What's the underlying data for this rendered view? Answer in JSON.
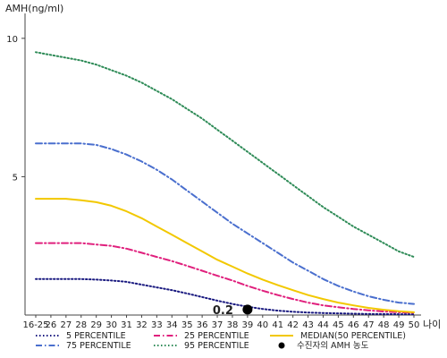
{
  "chart_data": {
    "type": "line",
    "ylabel": "AMH(ng/ml)",
    "xlabel": "나이",
    "ylim": [
      0,
      10.9
    ],
    "yticks": [
      10,
      5
    ],
    "categories": [
      "16-25",
      "26",
      "27",
      "28",
      "29",
      "30",
      "31",
      "32",
      "33",
      "34",
      "35",
      "36",
      "37",
      "38",
      "39",
      "40",
      "41",
      "42",
      "43",
      "44",
      "45",
      "46",
      "47",
      "48",
      "49",
      "50"
    ],
    "series": [
      {
        "name": "5 PERCENTILE",
        "color": "#1a1a80",
        "dash": "dot",
        "values": [
          1.3,
          1.3,
          1.3,
          1.3,
          1.28,
          1.25,
          1.2,
          1.1,
          1.0,
          0.9,
          0.78,
          0.65,
          0.52,
          0.4,
          0.3,
          0.22,
          0.16,
          0.12,
          0.09,
          0.07,
          0.06,
          0.05,
          0.04,
          0.035,
          0.03,
          0.03
        ]
      },
      {
        "name": "75 PERCENTILE",
        "color": "#4a6fce",
        "dash": "dashdot",
        "values": [
          6.2,
          6.2,
          6.2,
          6.2,
          6.15,
          6.0,
          5.8,
          5.55,
          5.25,
          4.9,
          4.5,
          4.1,
          3.7,
          3.3,
          2.95,
          2.6,
          2.25,
          1.9,
          1.6,
          1.3,
          1.05,
          0.85,
          0.68,
          0.55,
          0.45,
          0.4
        ]
      },
      {
        "name": "25 PERCENTILE",
        "color": "#e0207d",
        "dash": "dashdot",
        "values": [
          2.6,
          2.6,
          2.6,
          2.6,
          2.55,
          2.5,
          2.4,
          2.25,
          2.1,
          1.95,
          1.78,
          1.6,
          1.42,
          1.25,
          1.05,
          0.88,
          0.72,
          0.58,
          0.45,
          0.35,
          0.28,
          0.22,
          0.17,
          0.13,
          0.1,
          0.08
        ]
      },
      {
        "name": "95 PERCENTILE",
        "color": "#2e8b57",
        "dash": "dot",
        "values": [
          9.5,
          9.4,
          9.3,
          9.2,
          9.05,
          8.85,
          8.65,
          8.4,
          8.1,
          7.8,
          7.45,
          7.1,
          6.7,
          6.3,
          5.9,
          5.5,
          5.1,
          4.7,
          4.3,
          3.9,
          3.55,
          3.2,
          2.9,
          2.6,
          2.3,
          2.1
        ]
      },
      {
        "name": "MEDIAN(50 PERCENTILE)",
        "color": "#f2c800",
        "dash": "solid",
        "values": [
          4.2,
          4.2,
          4.2,
          4.15,
          4.08,
          3.95,
          3.75,
          3.5,
          3.2,
          2.9,
          2.6,
          2.3,
          2.0,
          1.75,
          1.5,
          1.28,
          1.08,
          0.9,
          0.72,
          0.58,
          0.45,
          0.35,
          0.26,
          0.19,
          0.14,
          0.1
        ]
      }
    ],
    "marker": {
      "name": "수진자의 AMH 농도",
      "x": "39",
      "y": 0.2,
      "label": "0.2",
      "color": "#000000"
    }
  }
}
